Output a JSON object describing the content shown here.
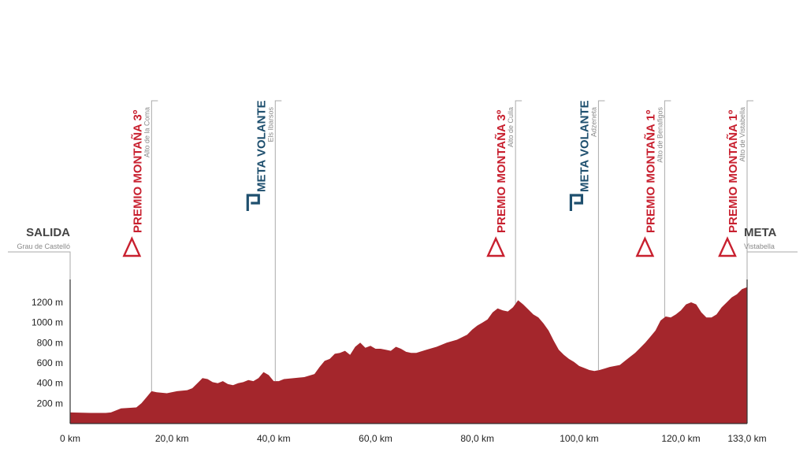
{
  "colors": {
    "profile": "#a4262c",
    "mountain": "#c8202f",
    "sprint": "#1e4f6e",
    "guide": "#aaaaaa",
    "axis": "#333333"
  },
  "start": {
    "title": "SALIDA",
    "subtitle": "Grau de Castelló"
  },
  "finish": {
    "title": "META",
    "subtitle": "Vistabella"
  },
  "waypoints": [
    {
      "type": "mountain",
      "icon": "triangle-icon",
      "title": "PREMIO MONTAÑA 3º",
      "place": "Alto de la Coma",
      "km": 16.0
    },
    {
      "type": "sprint",
      "icon": "sprint-p-icon",
      "title": "META VOLANTE",
      "place": "Els Ibarsos",
      "km": 40.3
    },
    {
      "type": "mountain",
      "icon": "triangle-icon",
      "title": "PREMIO MONTAÑA 3º",
      "place": "Alto de Culla",
      "km": 87.5
    },
    {
      "type": "sprint",
      "icon": "sprint-p-icon",
      "title": "META VOLANTE",
      "place": "Adzeneta",
      "km": 103.8
    },
    {
      "type": "mountain",
      "icon": "triangle-icon",
      "title": "PREMIO MONTAÑA 1º",
      "place": "Alto de Benafigos",
      "km": 116.8
    },
    {
      "type": "mountain",
      "icon": "triangle-icon",
      "title": "PREMIO MONTAÑA 1º",
      "place": "Alto de Vistabella",
      "km": 133.0
    }
  ],
  "chart_data": {
    "type": "area",
    "title": "",
    "xlabel": "",
    "ylabel": "",
    "x_unit": "km",
    "y_unit": "m",
    "xlim": [
      0,
      133
    ],
    "ylim": [
      0,
      1350
    ],
    "x_ticks": [
      0,
      20,
      40,
      60,
      80,
      100,
      120,
      133
    ],
    "x_tick_labels": [
      "0 km",
      "20,0 km",
      "40,0 km",
      "60,0 km",
      "80,0 km",
      "100,0 km",
      "120,0 km",
      "133,0 km"
    ],
    "y_ticks": [
      200,
      400,
      600,
      800,
      1000,
      1200
    ],
    "y_tick_labels": [
      "200 m",
      "400 m",
      "600 m",
      "800 m",
      "1000 m",
      "1200 m"
    ],
    "grid": false,
    "legend": "none",
    "series": [
      {
        "x": [
          0,
          4,
          7,
          8,
          10,
          13,
          14,
          15,
          16,
          17,
          19,
          21,
          23,
          24,
          25,
          26,
          27,
          28,
          29,
          30,
          31,
          32,
          33,
          34,
          35,
          36,
          37,
          38,
          39,
          40,
          41,
          42,
          44,
          46,
          48,
          49,
          50,
          51,
          52,
          53,
          54,
          55,
          56,
          57,
          58,
          59,
          60,
          61,
          62,
          63,
          64,
          65,
          66,
          67,
          68,
          70,
          72,
          74,
          76,
          78,
          79,
          80,
          81,
          82,
          83,
          84,
          85,
          86,
          87,
          88,
          89,
          90,
          91,
          92,
          93,
          94,
          95,
          96,
          97,
          98,
          99,
          100,
          101,
          102,
          103,
          104,
          105,
          106,
          107,
          108,
          109,
          110,
          111,
          112,
          113,
          114,
          115,
          116,
          117,
          118,
          119,
          120,
          121,
          122,
          123,
          124,
          125,
          126,
          127,
          128,
          129,
          130,
          131,
          132,
          133
        ],
        "y": [
          110,
          105,
          105,
          110,
          150,
          160,
          200,
          260,
          320,
          310,
          300,
          320,
          330,
          350,
          400,
          450,
          440,
          410,
          400,
          420,
          390,
          380,
          400,
          410,
          430,
          420,
          450,
          510,
          480,
          420,
          420,
          440,
          450,
          460,
          490,
          560,
          620,
          640,
          690,
          700,
          720,
          680,
          760,
          800,
          750,
          770,
          740,
          740,
          730,
          720,
          760,
          740,
          710,
          700,
          700,
          730,
          760,
          800,
          830,
          880,
          930,
          970,
          1000,
          1030,
          1100,
          1140,
          1120,
          1110,
          1150,
          1220,
          1180,
          1130,
          1080,
          1050,
          990,
          920,
          820,
          730,
          680,
          640,
          610,
          570,
          550,
          530,
          520,
          530,
          545,
          560,
          570,
          580,
          620,
          660,
          700,
          750,
          800,
          860,
          920,
          1020,
          1060,
          1050,
          1080,
          1120,
          1180,
          1200,
          1180,
          1100,
          1050,
          1050,
          1080,
          1150,
          1200,
          1250,
          1280,
          1330,
          1350
        ]
      }
    ]
  }
}
